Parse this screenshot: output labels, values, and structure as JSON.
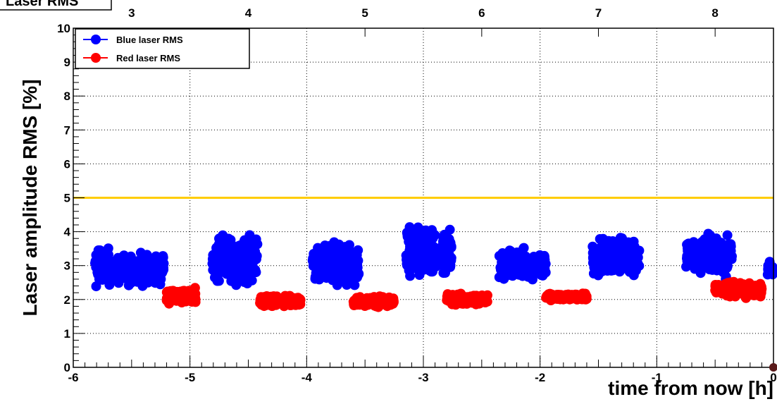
{
  "chart_data": {
    "type": "scatter",
    "title": "Laser RMS",
    "xlabel": "time from now [h]",
    "ylabel": "Laser amplitude RMS [%]",
    "xlim": [
      -6,
      0
    ],
    "ylim": [
      0,
      10
    ],
    "x_ticks": [
      -6,
      -5,
      -4,
      -3,
      -2,
      -1,
      0
    ],
    "y_ticks": [
      0,
      1,
      2,
      3,
      4,
      5,
      6,
      7,
      8,
      9,
      10
    ],
    "top_axis_ticks": [
      "3",
      "4",
      "5",
      "6",
      "7",
      "8"
    ],
    "top_axis_tick_x": [
      -5.5,
      -4.5,
      -3.5,
      -2.5,
      -1.5,
      -0.5
    ],
    "grid": true,
    "legend_position": "top-left",
    "threshold": {
      "y": 5,
      "color": "#ffcc00"
    },
    "series": [
      {
        "name": "Blue laser RMS",
        "color": "#0000ff",
        "clusters": [
          {
            "x": [
              -5.82,
              -5.65
            ],
            "y": [
              2.2,
              3.7
            ]
          },
          {
            "x": [
              -5.62,
              -5.22
            ],
            "y": [
              2.3,
              3.5
            ]
          },
          {
            "x": [
              -4.82,
              -4.42
            ],
            "y": [
              2.3,
              4.1
            ]
          },
          {
            "x": [
              -3.95,
              -3.55
            ],
            "y": [
              2.2,
              3.8
            ]
          },
          {
            "x": [
              -3.15,
              -2.75
            ],
            "y": [
              2.3,
              4.4
            ]
          },
          {
            "x": [
              -2.35,
              -1.95
            ],
            "y": [
              2.4,
              3.6
            ]
          },
          {
            "x": [
              -1.55,
              -1.15
            ],
            "y": [
              2.5,
              4.0
            ]
          },
          {
            "x": [
              -0.75,
              -0.35
            ],
            "y": [
              2.5,
              4.1
            ]
          },
          {
            "x": [
              -0.05,
              0.0
            ],
            "y": [
              2.5,
              3.2
            ]
          }
        ]
      },
      {
        "name": "Red laser RMS",
        "color": "#ff0000",
        "clusters": [
          {
            "x": [
              -5.2,
              -4.95
            ],
            "y": [
              1.8,
              2.4
            ]
          },
          {
            "x": [
              -4.4,
              -4.05
            ],
            "y": [
              1.75,
              2.15
            ]
          },
          {
            "x": [
              -3.6,
              -3.25
            ],
            "y": [
              1.75,
              2.15
            ]
          },
          {
            "x": [
              -2.8,
              -2.45
            ],
            "y": [
              1.8,
              2.2
            ]
          },
          {
            "x": [
              -1.95,
              -1.6
            ],
            "y": [
              1.95,
              2.2
            ]
          },
          {
            "x": [
              -0.5,
              -0.1
            ],
            "y": [
              2.0,
              2.6
            ]
          }
        ]
      }
    ]
  }
}
